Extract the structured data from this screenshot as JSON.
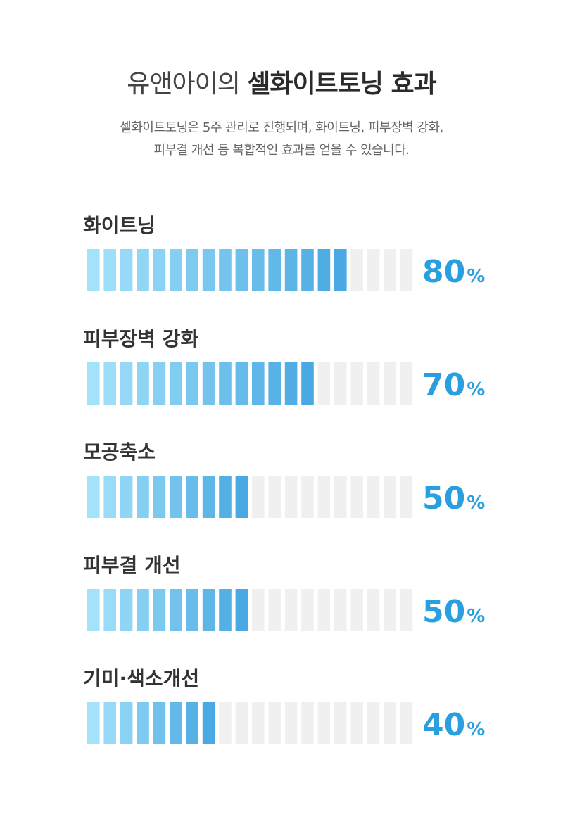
{
  "header": {
    "title_light": "유앤아이의 ",
    "title_bold": "셀화이트토닝 효과",
    "description_line1": "셀화이트토닝은 5주 관리로 진행되며, 화이트닝, 피부장벽 강화,",
    "description_line2": "피부결 개선 등 복합적인 효과를 얻을 수 있습니다."
  },
  "colors": {
    "segment_start": "#a3e2fa",
    "segment_end": "#4aa9e2",
    "segment_empty": "#f0f0f0",
    "percent_text": "#2a9fe0",
    "label_text": "#333333"
  },
  "chart_data": {
    "type": "bar",
    "segments_per_bar": 20,
    "unit": "%",
    "categories": [
      "화이트닝",
      "피부장벽 강화",
      "모공축소",
      "피부결 개선",
      "기미·색소개선"
    ],
    "values": [
      80,
      70,
      50,
      50,
      40
    ],
    "value_labels": [
      "80",
      "70",
      "50",
      "50",
      "40"
    ],
    "ylim": [
      0,
      100
    ]
  }
}
